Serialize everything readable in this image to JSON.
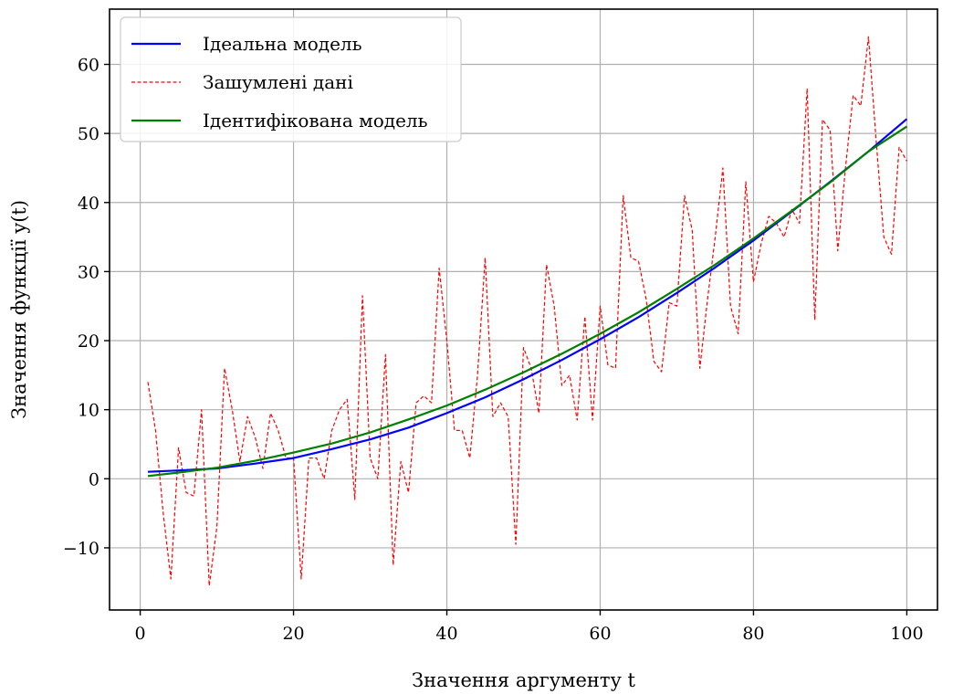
{
  "chart_data": {
    "type": "line",
    "xlabel": "Значення аргументу t",
    "ylabel": "Значення функції y(t)",
    "xlim": [
      -4,
      104
    ],
    "ylim": [
      -19,
      68
    ],
    "x_ticks": [
      0,
      20,
      40,
      60,
      80,
      100
    ],
    "y_ticks": [
      -10,
      0,
      10,
      20,
      30,
      40,
      50,
      60
    ],
    "grid": true,
    "legend_position": "top-left",
    "series": [
      {
        "name": "Ідеальна модель",
        "style": "solid",
        "color": "#0000ff",
        "x": [
          1,
          5,
          10,
          15,
          20,
          25,
          30,
          35,
          40,
          45,
          50,
          55,
          60,
          65,
          70,
          75,
          80,
          85,
          90,
          95,
          100
        ],
        "values": [
          1.0,
          1.2,
          1.5,
          2.2,
          3.0,
          4.3,
          5.7,
          7.4,
          9.5,
          11.8,
          14.4,
          17.2,
          20.2,
          23.4,
          26.9,
          30.6,
          34.5,
          38.7,
          43.0,
          47.4,
          52.1
        ]
      },
      {
        "name": "Зашумлені дані",
        "style": "dashed",
        "color": "#ff0000",
        "x": [
          1,
          2,
          3,
          4,
          5,
          6,
          7,
          8,
          9,
          10,
          11,
          12,
          13,
          14,
          15,
          16,
          17,
          18,
          19,
          20,
          21,
          22,
          23,
          24,
          25,
          26,
          27,
          28,
          29,
          30,
          31,
          32,
          33,
          34,
          35,
          36,
          37,
          38,
          39,
          40,
          41,
          42,
          43,
          44,
          45,
          46,
          47,
          48,
          49,
          50,
          51,
          52,
          53,
          54,
          55,
          56,
          57,
          58,
          59,
          60,
          61,
          62,
          63,
          64,
          65,
          66,
          67,
          68,
          69,
          70,
          71,
          72,
          73,
          74,
          75,
          76,
          77,
          78,
          79,
          80,
          81,
          82,
          83,
          84,
          85,
          86,
          87,
          88,
          89,
          90,
          91,
          92,
          93,
          94,
          95,
          96,
          97,
          98,
          99,
          100
        ],
        "values": [
          14,
          7,
          -5,
          -14.5,
          4.5,
          -2,
          -2.5,
          10,
          -15.5,
          -7,
          16,
          10,
          2.5,
          9,
          6,
          1.5,
          9.5,
          7,
          3,
          3,
          -14.5,
          3,
          3,
          0,
          7,
          10,
          11.5,
          -3,
          26.5,
          3,
          0,
          18,
          -12.5,
          2.5,
          -2,
          11,
          12,
          11,
          30.5,
          20,
          7,
          7,
          3,
          15,
          32,
          9,
          11,
          9,
          -9.5,
          19,
          16,
          9.5,
          31,
          25,
          13.5,
          15,
          8.5,
          23.5,
          8.5,
          25,
          16.5,
          16,
          41,
          32,
          31.5,
          26,
          17,
          15.5,
          25.5,
          25,
          41,
          36,
          16,
          26,
          35,
          45,
          25,
          21,
          43,
          28.5,
          34,
          38,
          37,
          35,
          39,
          37,
          56.5,
          23,
          52,
          50.5,
          33,
          45,
          55.5,
          54,
          64,
          49,
          35,
          32.5,
          48,
          46
        ]
      },
      {
        "name": "Ідентифікована модель",
        "style": "solid",
        "color": "#008000",
        "x": [
          1,
          5,
          10,
          15,
          20,
          25,
          30,
          35,
          40,
          45,
          50,
          55,
          60,
          65,
          70,
          75,
          80,
          85,
          90,
          95,
          100
        ],
        "values": [
          0.4,
          0.9,
          1.6,
          2.6,
          3.8,
          5.1,
          6.7,
          8.6,
          10.6,
          12.9,
          15.4,
          18.1,
          21.0,
          24.1,
          27.5,
          31.0,
          34.8,
          38.8,
          42.9,
          47.4,
          51.0
        ]
      }
    ]
  }
}
